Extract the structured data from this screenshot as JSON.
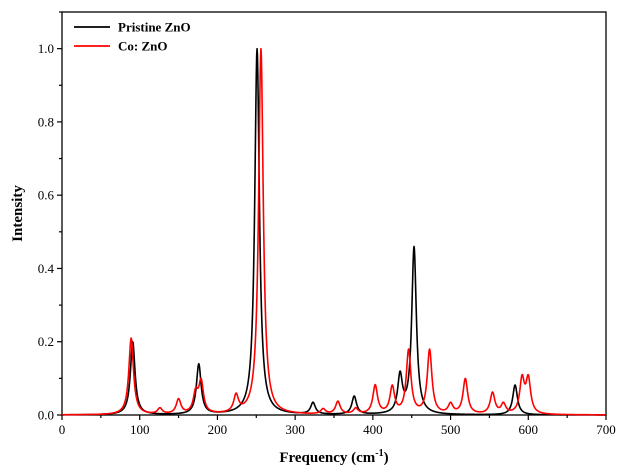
{
  "chart_data": {
    "type": "line",
    "xlabel": "Frequency (cm",
    "xlabel_sup": "-1",
    "xlabel_suffix": ")",
    "ylabel": "Intensity",
    "xlim": [
      0,
      700
    ],
    "ylim": [
      0,
      1.1
    ],
    "xticks": [
      0,
      100,
      200,
      300,
      400,
      500,
      600,
      700
    ],
    "yticks": [
      0.0,
      0.2,
      0.4,
      0.6,
      0.8,
      1.0
    ],
    "grid": false,
    "legend_position": "top-left",
    "series": [
      {
        "name": "Pristine ZnO",
        "color": "#000000",
        "peaks": [
          {
            "x": 91,
            "y": 0.2
          },
          {
            "x": 176,
            "y": 0.14
          },
          {
            "x": 251,
            "y": 1.0
          },
          {
            "x": 323,
            "y": 0.035
          },
          {
            "x": 376,
            "y": 0.052
          },
          {
            "x": 435,
            "y": 0.12
          },
          {
            "x": 453,
            "y": 0.46
          },
          {
            "x": 583,
            "y": 0.082
          }
        ]
      },
      {
        "name": "Co: ZnO",
        "color": "#ff0000",
        "peaks": [
          {
            "x": 89,
            "y": 0.21
          },
          {
            "x": 126,
            "y": 0.02
          },
          {
            "x": 150,
            "y": 0.045
          },
          {
            "x": 172,
            "y": 0.075
          },
          {
            "x": 179,
            "y": 0.1
          },
          {
            "x": 224,
            "y": 0.06
          },
          {
            "x": 256,
            "y": 1.0
          },
          {
            "x": 336,
            "y": 0.018
          },
          {
            "x": 355,
            "y": 0.038
          },
          {
            "x": 378,
            "y": 0.02
          },
          {
            "x": 403,
            "y": 0.083
          },
          {
            "x": 425,
            "y": 0.082
          },
          {
            "x": 446,
            "y": 0.18
          },
          {
            "x": 473,
            "y": 0.18
          },
          {
            "x": 500,
            "y": 0.035
          },
          {
            "x": 519,
            "y": 0.1
          },
          {
            "x": 554,
            "y": 0.063
          },
          {
            "x": 568,
            "y": 0.035
          },
          {
            "x": 592,
            "y": 0.11
          },
          {
            "x": 600,
            "y": 0.11
          }
        ]
      }
    ]
  }
}
